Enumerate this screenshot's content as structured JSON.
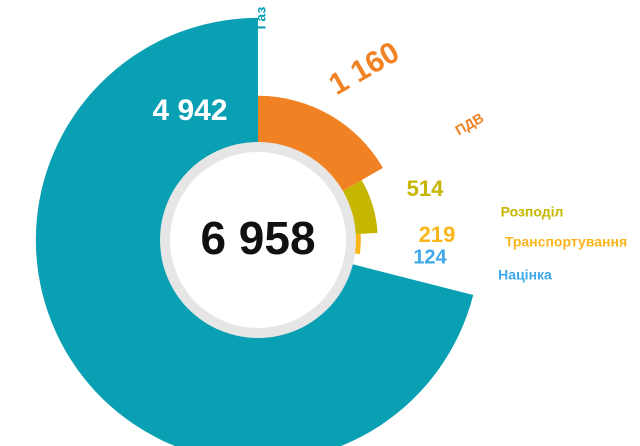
{
  "chart_data": {
    "type": "rose",
    "total": {
      "value": 6958,
      "label": "6 958"
    },
    "series": [
      {
        "name": "ПДВ",
        "value": 1160,
        "value_label": "1 160",
        "color": "#f08224"
      },
      {
        "name": "Розподіл",
        "value": 514,
        "value_label": "514",
        "color": "#c6b600"
      },
      {
        "name": "Транспортування",
        "value": 219,
        "value_label": "219",
        "color": "#f9b51a"
      },
      {
        "name": "Націнка",
        "value": 124,
        "value_label": "124",
        "color": "#3ea8ea"
      },
      {
        "name": "Газ",
        "value": 4942,
        "value_label": "4 942",
        "color": "#0aa0b4"
      }
    ]
  }
}
